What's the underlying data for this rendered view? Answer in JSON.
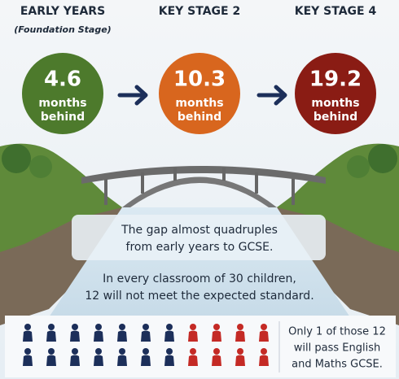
{
  "stages": [
    {
      "title": "EARLY YEARS",
      "subtitle": "(Foundation Stage)",
      "value": 4.6,
      "unit": [
        "months",
        "behind"
      ],
      "color": "#4d7a2c"
    },
    {
      "title": "KEY STAGE 2",
      "value": 10.3,
      "unit": [
        "months",
        "behind"
      ],
      "color": "#d8661e"
    },
    {
      "title": "KEY STAGE 4",
      "value": 19.2,
      "unit": [
        "months",
        "behind"
      ],
      "color": "#8a1c14"
    }
  ],
  "gap_text": [
    "The gap almost quadruples",
    "from early years to GCSE."
  ],
  "classroom_text": [
    "In every classroom of 30 children,",
    "12 will not meet the expected standard."
  ],
  "gcse_text": [
    "Only 1 of those 12",
    "will pass English",
    "and Maths GCSE."
  ]
}
